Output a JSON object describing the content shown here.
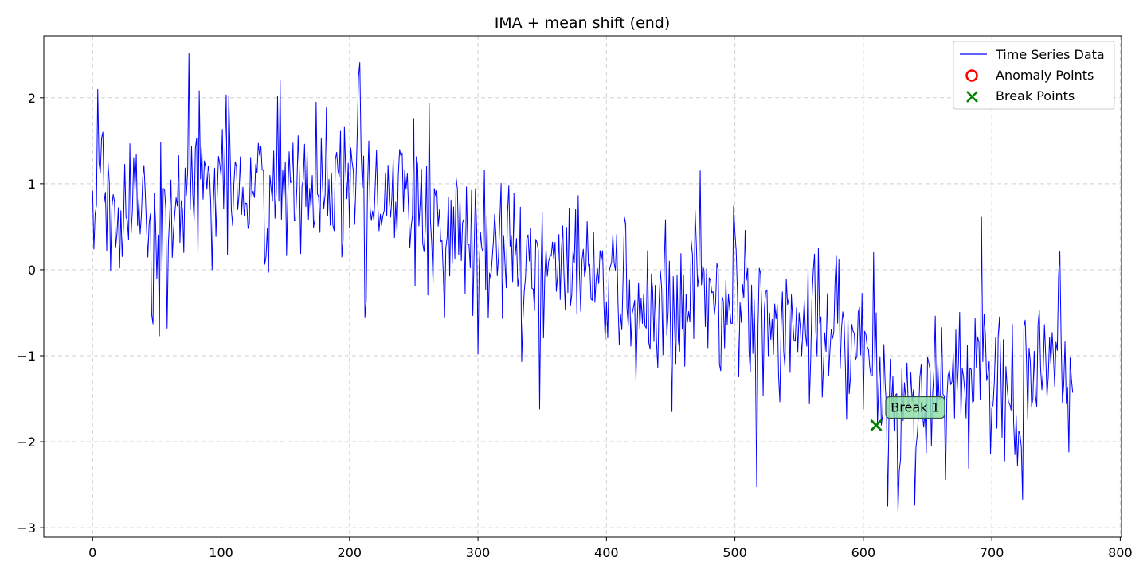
{
  "chart_data": {
    "type": "line",
    "title": "IMA + mean shift (end)",
    "xlabel": "",
    "ylabel": "",
    "xlim": [
      -38,
      801
    ],
    "ylim": [
      -3.11,
      2.72
    ],
    "x_ticks": [
      0,
      100,
      200,
      300,
      400,
      500,
      600,
      700,
      800
    ],
    "x_tick_labels": [
      "0",
      "100",
      "200",
      "300",
      "400",
      "500",
      "600",
      "700",
      "800"
    ],
    "y_ticks": [
      -3,
      -2,
      -1,
      0,
      1,
      2
    ],
    "y_tick_labels": [
      "−3",
      "−2",
      "−1",
      "0",
      "1",
      "2"
    ],
    "grid": true,
    "legend_position": "top-right",
    "series": [
      {
        "name": "Time Series Data",
        "color": "#0000ff",
        "x_start": 0,
        "x_step": 1,
        "anchors": [
          [
            0,
            0.9
          ],
          [
            5,
            1.2
          ],
          [
            10,
            0.6
          ],
          [
            20,
            0.9
          ],
          [
            40,
            0.8
          ],
          [
            50,
            0.6
          ],
          [
            60,
            0.6
          ],
          [
            80,
            1.0
          ],
          [
            100,
            1.05
          ],
          [
            120,
            1.0
          ],
          [
            140,
            1.05
          ],
          [
            160,
            0.9
          ],
          [
            180,
            0.85
          ],
          [
            200,
            0.9
          ],
          [
            220,
            0.8
          ],
          [
            240,
            0.75
          ],
          [
            260,
            0.6
          ],
          [
            280,
            0.5
          ],
          [
            300,
            0.35
          ],
          [
            320,
            0.3
          ],
          [
            340,
            0.1
          ],
          [
            360,
            0.05
          ],
          [
            380,
            -0.1
          ],
          [
            400,
            -0.2
          ],
          [
            420,
            -0.35
          ],
          [
            440,
            -0.4
          ],
          [
            460,
            -0.25
          ],
          [
            480,
            -0.3
          ],
          [
            500,
            -0.25
          ],
          [
            520,
            -0.6
          ],
          [
            540,
            -0.55
          ],
          [
            560,
            -0.6
          ],
          [
            580,
            -0.65
          ],
          [
            600,
            -0.8
          ],
          [
            608,
            -0.9
          ],
          [
            612,
            -1.5
          ],
          [
            640,
            -1.55
          ],
          [
            660,
            -1.45
          ],
          [
            680,
            -1.2
          ],
          [
            700,
            -1.15
          ],
          [
            720,
            -1.55
          ],
          [
            740,
            -1.05
          ],
          [
            763,
            -1.4
          ]
        ],
        "noise_sd": 0.42,
        "seed": 7,
        "fixed_points": [
          [
            0,
            0.92
          ],
          [
            1,
            0.24
          ],
          [
            3,
            0.75
          ],
          [
            5,
            1.24
          ],
          [
            8,
            1.6
          ],
          [
            14,
            -0.01
          ],
          [
            21,
            0.02
          ],
          [
            46,
            -0.52
          ],
          [
            47,
            -0.63
          ],
          [
            58,
            -0.68
          ],
          [
            75,
            2.52
          ],
          [
            83,
            2.08
          ],
          [
            137,
            -0.03
          ],
          [
            144,
            2.02
          ],
          [
            146,
            2.21
          ],
          [
            174,
            1.95
          ],
          [
            208,
            2.41
          ],
          [
            212,
            -0.55
          ],
          [
            262,
            1.94
          ],
          [
            300,
            -0.98
          ],
          [
            348,
            -1.62
          ],
          [
            473,
            1.15
          ],
          [
            451,
            -1.65
          ],
          [
            558,
            -1.56
          ],
          [
            600,
            -1.62
          ],
          [
            608,
            0.2
          ],
          [
            610,
            -0.5
          ],
          [
            611,
            -1.8
          ],
          [
            627,
            -2.82
          ],
          [
            640,
            -2.74
          ],
          [
            664,
            -2.44
          ],
          [
            682,
            -2.31
          ],
          [
            692,
            0.61
          ],
          [
            724,
            -2.67
          ],
          [
            752,
            -0.07
          ],
          [
            760,
            -2.12
          ],
          [
            763,
            -1.43
          ]
        ],
        "length": 764
      }
    ],
    "anomaly_points": [],
    "break_points": [
      {
        "x": 610,
        "y": -1.81,
        "label": "Break 1"
      }
    ],
    "legend": [
      {
        "label": "Time Series Data",
        "marker": "line",
        "color": "#0000ff"
      },
      {
        "label": "Anomaly Points",
        "marker": "circle",
        "color": "#ff0000"
      },
      {
        "label": "Break Points",
        "marker": "x",
        "color": "#008000"
      }
    ],
    "annotation_box_color": "#90e0a8"
  }
}
